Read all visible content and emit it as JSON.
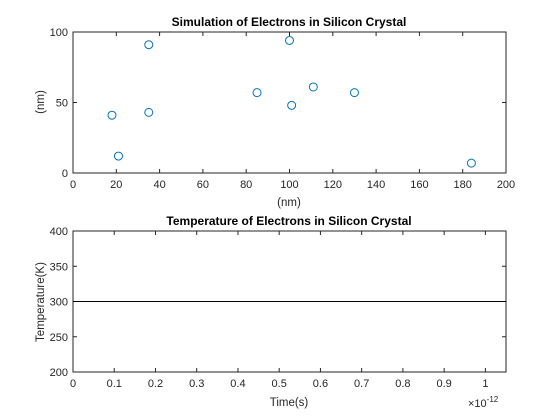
{
  "chart_data": [
    {
      "type": "scatter",
      "title": "Simulation of Electrons in Silicon Crystal",
      "xlabel": "(nm)",
      "ylabel": "(nm)",
      "xlim": [
        0,
        200
      ],
      "ylim": [
        0,
        100
      ],
      "xticks": [
        0,
        20,
        40,
        60,
        80,
        100,
        120,
        140,
        160,
        180,
        200
      ],
      "yticks": [
        0,
        50,
        100
      ],
      "grid": false,
      "marker": "open-circle",
      "color": "#0072BD",
      "points": [
        {
          "x": 18,
          "y": 41
        },
        {
          "x": 21,
          "y": 12
        },
        {
          "x": 35,
          "y": 91
        },
        {
          "x": 35,
          "y": 43
        },
        {
          "x": 85,
          "y": 57
        },
        {
          "x": 100,
          "y": 94
        },
        {
          "x": 101,
          "y": 48
        },
        {
          "x": 111,
          "y": 61
        },
        {
          "x": 130,
          "y": 57
        },
        {
          "x": 184,
          "y": 7
        }
      ]
    },
    {
      "type": "line",
      "title": "Temperature of Electrons in Silicon Crystal",
      "xlabel": "Time(s)",
      "ylabel": "Temperature(K)",
      "xlim": [
        0,
        1.05e-12
      ],
      "ylim": [
        200,
        400
      ],
      "xticks": [
        0,
        1e-13,
        2e-13,
        3e-13,
        4e-13,
        5e-13,
        6e-13,
        7e-13,
        8e-13,
        9e-13,
        1e-12
      ],
      "xtick_labels": [
        "0",
        "0.1",
        "0.2",
        "0.3",
        "0.4",
        "0.5",
        "0.6",
        "0.7",
        "0.8",
        "0.9",
        "1"
      ],
      "x_exponent_base": "×10",
      "x_exponent": "-12",
      "yticks": [
        200,
        250,
        300,
        350,
        400
      ],
      "grid": false,
      "color": "#000000",
      "series": [
        {
          "x": [
            0,
            1.05e-12
          ],
          "y": [
            300,
            300
          ]
        }
      ]
    }
  ]
}
